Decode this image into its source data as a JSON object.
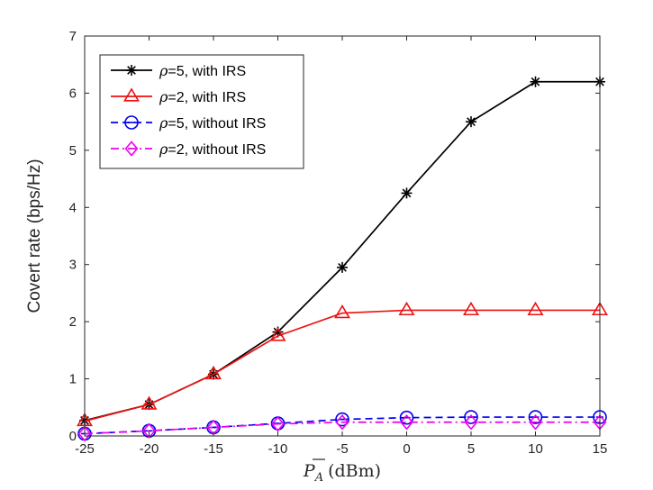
{
  "chart_data": {
    "type": "line",
    "x": [
      -25,
      -20,
      -15,
      -10,
      -5,
      0,
      5,
      10,
      15
    ],
    "xlabel_main": "P",
    "xlabel_sub": "A",
    "xlabel_unit": "(dBm)",
    "ylabel": "Covert rate (bps/Hz)",
    "xlim": [
      -25,
      15
    ],
    "ylim": [
      0,
      7
    ],
    "xticks": [
      "-25",
      "-20",
      "-15",
      "-10",
      "-5",
      "0",
      "5",
      "10",
      "15"
    ],
    "yticks": [
      "0",
      "1",
      "2",
      "3",
      "4",
      "5",
      "6",
      "7"
    ],
    "grid": false,
    "legend_position": "top-left",
    "series": [
      {
        "name_symbol": "ρ",
        "name_rest": "=5, with IRS",
        "color": "#000000",
        "marker": "asterisk",
        "dash": "solid",
        "values": [
          0.27,
          0.55,
          1.08,
          1.82,
          2.95,
          4.25,
          5.5,
          6.2,
          6.2
        ]
      },
      {
        "name_symbol": "ρ",
        "name_rest": "=2, with IRS",
        "color": "#ee1111",
        "marker": "triangle",
        "dash": "solid",
        "values": [
          0.26,
          0.55,
          1.08,
          1.75,
          2.15,
          2.2,
          2.2,
          2.2,
          2.2
        ]
      },
      {
        "name_symbol": "ρ",
        "name_rest": "=5, without IRS",
        "color": "#0000ee",
        "marker": "circle-minus",
        "dash": "dashed",
        "values": [
          0.04,
          0.09,
          0.15,
          0.22,
          0.29,
          0.32,
          0.33,
          0.33,
          0.33
        ]
      },
      {
        "name_symbol": "ρ",
        "name_rest": "=2, without IRS",
        "color": "#ee00ee",
        "marker": "diamond",
        "dash": "dashdot",
        "values": [
          0.04,
          0.09,
          0.15,
          0.21,
          0.24,
          0.24,
          0.24,
          0.24,
          0.24
        ]
      }
    ]
  }
}
